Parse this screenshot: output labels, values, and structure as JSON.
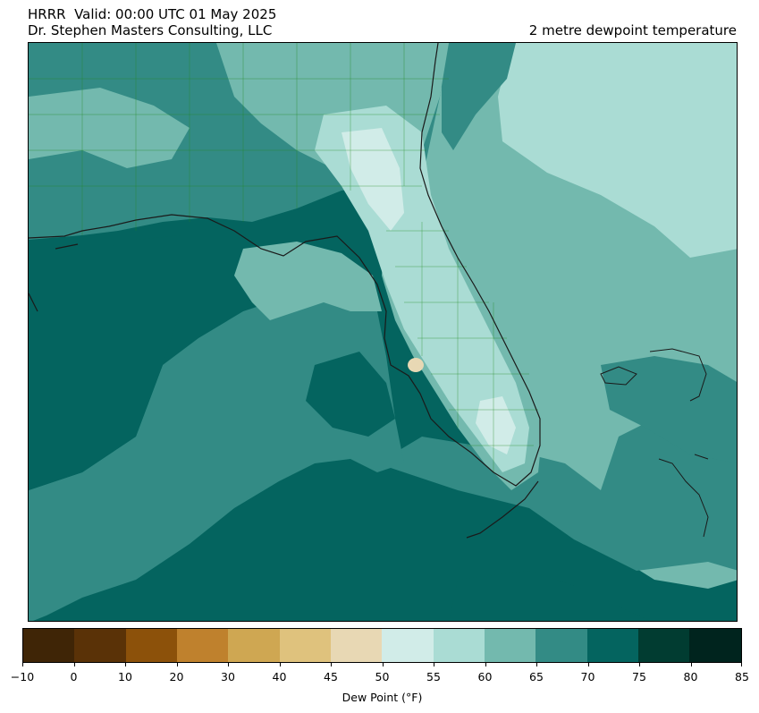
{
  "header": {
    "title_line1": "HRRR  Valid: 00:00 UTC 01 May 2025",
    "title_line2": "Dr. Stephen Masters Consulting, LLC",
    "field_title": "2 metre dewpoint temperature"
  },
  "map": {
    "region": "Florida, Southeastern US, Gulf of Mexico, Bahamas, Cuba",
    "colors": {
      "dp_70_75": "#04645f",
      "dp_65_70": "#338b85",
      "dp_60_65": "#73b9ae",
      "dp_55_60": "#aadcd4",
      "dp_50_55": "#d1ece8",
      "dp_45_50": "#e8d8b4",
      "coastline": "#1a1a1a",
      "county_lines": "#1f8a1f"
    }
  },
  "colorbar": {
    "label": "Dew Point (°F)",
    "ticks": [
      -10,
      0,
      10,
      20,
      30,
      40,
      45,
      50,
      55,
      60,
      65,
      70,
      75,
      80,
      85
    ],
    "tick_labels": [
      "−10",
      "0",
      "10",
      "20",
      "30",
      "40",
      "45",
      "50",
      "55",
      "60",
      "65",
      "70",
      "75",
      "80",
      "85"
    ],
    "colors": [
      "#3f2506",
      "#5a3207",
      "#8c510a",
      "#bf812d",
      "#cfa752",
      "#dfc27d",
      "#e8d8b4",
      "#d1ece8",
      "#aadcd4",
      "#73b9ae",
      "#338b85",
      "#04645f",
      "#013c31",
      "#00241e"
    ]
  }
}
